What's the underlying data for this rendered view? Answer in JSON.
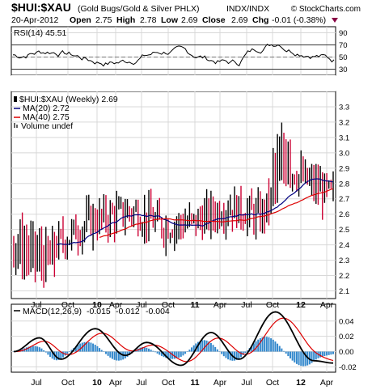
{
  "header": {
    "symbol": "$HUI:$XAU",
    "description": "(Gold Bugs/Gold & Silver PHLX)",
    "exchange": "INDX/INDX",
    "copyright": "© StockCharts.com",
    "date": "20-Apr-2012",
    "open_label": "Open",
    "open": "2.75",
    "high_label": "High",
    "high": "2.78",
    "low_label": "Low",
    "low": "2.69",
    "close_label": "Close",
    "close": "2.69",
    "chg_label": "Chg",
    "chg": "-0.01 (-0.38%)"
  },
  "rsi": {
    "label": "RSI(14) 45.51",
    "ticks": [
      30,
      50,
      70,
      90
    ],
    "overbought": 70,
    "oversold": 30,
    "mid": 50,
    "ylim": [
      20,
      100
    ],
    "color": "#000000"
  },
  "price": {
    "legend_title": "$HUI:$XAU (Weekly) 2.69",
    "ma20_label": "MA(20) 2.72",
    "ma40_label": "MA(40) 2.75",
    "volume_label": "Volume undef",
    "ticks": [
      "2.1",
      "2.2",
      "2.3",
      "2.4",
      "2.5",
      "2.6",
      "2.7",
      "2.8",
      "2.9",
      "3.0",
      "3.1",
      "3.2",
      "3.3"
    ],
    "ylim": [
      2.05,
      3.4
    ],
    "up_color": "#000000",
    "down_color": "#cc0033",
    "ma20_color": "#000080",
    "ma40_color": "#dd0000"
  },
  "macd": {
    "label_prefix": "MACD(12,26,9)",
    "macd_value": "-0.015",
    "signal_value": "-0.012",
    "hist_value": "-0.004",
    "ticks": [
      "-0.02",
      "0.00",
      "0.02",
      "0.04"
    ],
    "ylim": [
      -0.027,
      0.062
    ],
    "macd_color": "#000000",
    "signal_color": "#dd0000",
    "hist_color": "#3388cc"
  },
  "x_axis": {
    "labels": [
      "Jul",
      "Oct",
      "10",
      "Apr",
      "Jul",
      "Oct",
      "11",
      "Apr",
      "Jul",
      "Oct",
      "12",
      "Apr"
    ],
    "bold": [
      "10",
      "11",
      "12"
    ]
  },
  "chart_data": {
    "type": "line",
    "note_series": [
      {
        "name": "$HUI:$XAU (Weekly)",
        "x": [
          "2009-05",
          "2009-07",
          "2009-10",
          "2010-01",
          "2010-04",
          "2010-07",
          "2010-10",
          "2011-01",
          "2011-04",
          "2011-07",
          "2011-10",
          "2012-01",
          "2012-04"
        ],
        "values": [
          2.45,
          2.35,
          2.55,
          2.6,
          2.58,
          2.5,
          2.62,
          2.65,
          2.58,
          2.8,
          2.9,
          2.75,
          2.69
        ]
      },
      {
        "name": "MA(20)",
        "x": [
          "2009-10",
          "2010-01",
          "2010-04",
          "2010-07",
          "2010-10",
          "2011-01",
          "2011-04",
          "2011-07",
          "2011-10",
          "2012-01",
          "2012-04"
        ],
        "values": [
          2.5,
          2.58,
          2.62,
          2.55,
          2.56,
          2.63,
          2.62,
          2.68,
          2.8,
          2.75,
          2.72
        ]
      },
      {
        "name": "MA(40)",
        "x": [
          "2010-01",
          "2010-04",
          "2010-07",
          "2010-10",
          "2011-01",
          "2011-04",
          "2011-07",
          "2011-10",
          "2012-01",
          "2012-04"
        ],
        "values": [
          2.52,
          2.58,
          2.57,
          2.58,
          2.6,
          2.62,
          2.64,
          2.72,
          2.76,
          2.75
        ]
      }
    ]
  }
}
